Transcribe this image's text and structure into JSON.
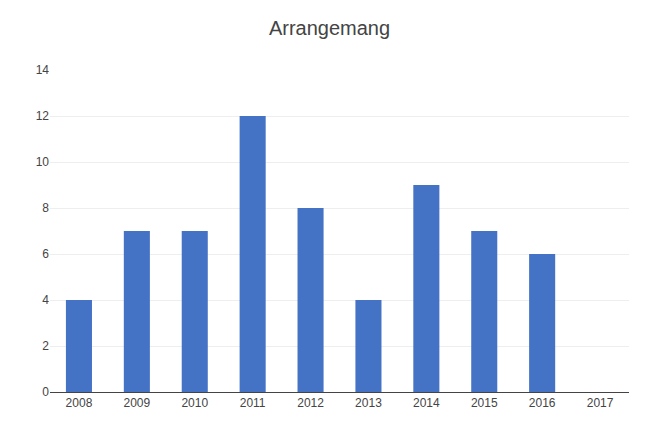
{
  "chart_data": {
    "type": "bar",
    "title": "Arrangemang",
    "categories": [
      "2008",
      "2009",
      "2010",
      "2011",
      "2012",
      "2013",
      "2014",
      "2015",
      "2016",
      "2017"
    ],
    "values": [
      4,
      7,
      7,
      12,
      8,
      4,
      9,
      7,
      6,
      0
    ],
    "color": "#4472c4",
    "ylim": [
      0,
      14
    ],
    "yticks": [
      0,
      2,
      4,
      6,
      8,
      10,
      12,
      14
    ],
    "grid": true
  }
}
